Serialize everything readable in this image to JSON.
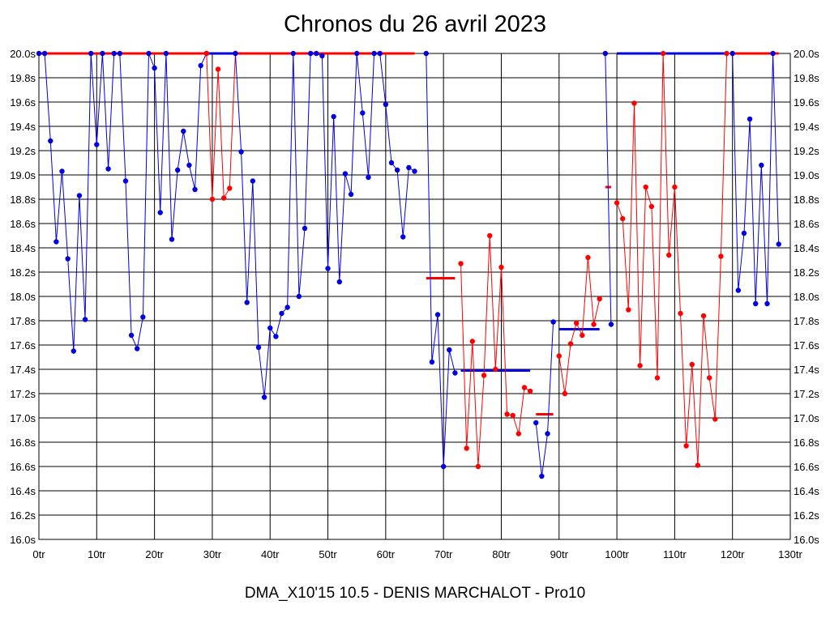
{
  "chart_data": {
    "type": "line",
    "title": "Chronos du 26 avril 2023",
    "subtitle": "DMA_X10'15 10.5 - DENIS MARCHALOT - Pro10",
    "x_unit": "tr",
    "y_unit": "s",
    "xlim": [
      0,
      130
    ],
    "ylim": [
      16.0,
      20.0
    ],
    "x_ticks": [
      "0tr",
      "10tr",
      "20tr",
      "30tr",
      "40tr",
      "50tr",
      "60tr",
      "70tr",
      "80tr",
      "90tr",
      "100tr",
      "110tr",
      "120tr",
      "130tr"
    ],
    "y_ticks": [
      "16.0s",
      "16.2s",
      "16.4s",
      "16.6s",
      "16.8s",
      "17.0s",
      "17.2s",
      "17.4s",
      "17.6s",
      "17.8s",
      "18.0s",
      "18.2s",
      "18.4s",
      "18.6s",
      "18.8s",
      "19.0s",
      "19.2s",
      "19.4s",
      "19.6s",
      "19.8s",
      "20.0s"
    ],
    "grid": true,
    "colors": {
      "blue": "#0000e0",
      "red": "#ff0000",
      "grid": "#000000"
    },
    "series": [
      {
        "color": "#0000e0",
        "points": [
          [
            0,
            20.0
          ],
          [
            1,
            20.0
          ],
          [
            2,
            19.28
          ],
          [
            3,
            18.45
          ],
          [
            4,
            19.03
          ],
          [
            5,
            18.31
          ],
          [
            6,
            17.55
          ],
          [
            7,
            18.83
          ],
          [
            8,
            17.81
          ],
          [
            9,
            20.0
          ],
          [
            10,
            19.25
          ],
          [
            11,
            20.0
          ],
          [
            12,
            19.05
          ],
          [
            13,
            20.0
          ],
          [
            14,
            20.0
          ],
          [
            15,
            18.95
          ],
          [
            16,
            17.68
          ],
          [
            17,
            17.57
          ],
          [
            18,
            17.83
          ],
          [
            19,
            20.0
          ],
          [
            20,
            19.88
          ],
          [
            21,
            18.69
          ],
          [
            22,
            20.0
          ],
          [
            23,
            18.47
          ],
          [
            24,
            19.04
          ],
          [
            25,
            19.36
          ],
          [
            26,
            19.08
          ],
          [
            27,
            18.88
          ],
          [
            28,
            19.9
          ],
          [
            29,
            20.0
          ]
        ]
      },
      {
        "color": "#ff0000",
        "points": [
          [
            29,
            20.0
          ],
          [
            30,
            18.8
          ],
          [
            31,
            19.87
          ],
          [
            32,
            18.81
          ],
          [
            33,
            18.89
          ],
          [
            34,
            20.0
          ]
        ]
      },
      {
        "color": "#0000e0",
        "points": [
          [
            34,
            20.0
          ],
          [
            35,
            19.19
          ],
          [
            36,
            17.95
          ],
          [
            37,
            18.95
          ],
          [
            38,
            17.58
          ],
          [
            39,
            17.17
          ],
          [
            40,
            17.74
          ],
          [
            41,
            17.67
          ],
          [
            42,
            17.86
          ],
          [
            43,
            17.91
          ],
          [
            44,
            20.0
          ],
          [
            45,
            18.0
          ],
          [
            46,
            18.56
          ],
          [
            47,
            20.0
          ],
          [
            48,
            20.0
          ],
          [
            49,
            19.98
          ],
          [
            50,
            18.23
          ],
          [
            51,
            19.48
          ],
          [
            52,
            18.12
          ],
          [
            53,
            19.01
          ],
          [
            54,
            18.84
          ],
          [
            55,
            20.0
          ],
          [
            56,
            19.51
          ],
          [
            57,
            18.98
          ],
          [
            58,
            20.0
          ],
          [
            59,
            20.0
          ],
          [
            60,
            19.58
          ],
          [
            61,
            19.1
          ],
          [
            62,
            19.04
          ],
          [
            63,
            18.49
          ],
          [
            64,
            19.06
          ],
          [
            65,
            19.03
          ]
        ]
      },
      {
        "color": "#0000e0",
        "points": [
          [
            67,
            20.0
          ],
          [
            68,
            17.46
          ],
          [
            69,
            17.85
          ],
          [
            70,
            16.6
          ],
          [
            71,
            17.56
          ],
          [
            72,
            17.37
          ]
        ]
      },
      {
        "color": "#ff0000",
        "points": [
          [
            73,
            18.27
          ],
          [
            74,
            16.75
          ],
          [
            75,
            17.63
          ],
          [
            76,
            16.6
          ],
          [
            77,
            17.35
          ],
          [
            78,
            18.5
          ],
          [
            79,
            17.4
          ],
          [
            80,
            18.24
          ],
          [
            81,
            17.03
          ],
          [
            82,
            17.02
          ],
          [
            83,
            16.87
          ],
          [
            84,
            17.25
          ],
          [
            85,
            17.22
          ]
        ]
      },
      {
        "color": "#0000e0",
        "points": [
          [
            86,
            16.96
          ],
          [
            87,
            16.52
          ],
          [
            88,
            16.87
          ],
          [
            89,
            17.79
          ]
        ]
      },
      {
        "color": "#ff0000",
        "points": [
          [
            90,
            17.51
          ],
          [
            91,
            17.2
          ],
          [
            92,
            17.61
          ],
          [
            93,
            17.78
          ],
          [
            94,
            17.68
          ],
          [
            95,
            18.32
          ],
          [
            96,
            17.77
          ],
          [
            97,
            17.98
          ]
        ]
      },
      {
        "color": "#0000e0",
        "points": [
          [
            98,
            20.0
          ],
          [
            99,
            17.77
          ]
        ]
      },
      {
        "color": "#ff0000",
        "points": [
          [
            100,
            18.77
          ],
          [
            101,
            18.64
          ],
          [
            102,
            17.89
          ],
          [
            103,
            19.59
          ],
          [
            104,
            17.43
          ],
          [
            105,
            18.9
          ],
          [
            106,
            18.74
          ],
          [
            107,
            17.33
          ],
          [
            108,
            20.0
          ],
          [
            109,
            18.34
          ],
          [
            110,
            18.9
          ],
          [
            111,
            17.86
          ],
          [
            112,
            16.77
          ],
          [
            113,
            17.44
          ],
          [
            114,
            16.61
          ],
          [
            115,
            17.84
          ],
          [
            116,
            17.33
          ],
          [
            117,
            16.99
          ],
          [
            118,
            18.33
          ],
          [
            119,
            20.0
          ]
        ]
      },
      {
        "color": "#0000e0",
        "points": [
          [
            120,
            20.0
          ],
          [
            121,
            18.05
          ],
          [
            122,
            18.52
          ],
          [
            123,
            19.46
          ],
          [
            124,
            17.94
          ],
          [
            125,
            19.08
          ],
          [
            126,
            17.94
          ],
          [
            127,
            20.0
          ],
          [
            128,
            18.43
          ]
        ]
      }
    ],
    "segments": [
      {
        "color": "#ff0000",
        "x": [
          0,
          29
        ],
        "y": 20.0
      },
      {
        "color": "#0000e0",
        "x": [
          29,
          34
        ],
        "y": 20.0
      },
      {
        "color": "#ff0000",
        "x": [
          34,
          65
        ],
        "y": 20.0
      },
      {
        "color": "#ff0000",
        "x": [
          67,
          72
        ],
        "y": 18.15
      },
      {
        "color": "#0000e0",
        "x": [
          73,
          85
        ],
        "y": 17.39
      },
      {
        "color": "#ff0000",
        "x": [
          86,
          89
        ],
        "y": 17.03
      },
      {
        "color": "#0000e0",
        "x": [
          90,
          97
        ],
        "y": 17.73
      },
      {
        "color": "#ff0000",
        "x": [
          98,
          99
        ],
        "y": 18.9
      },
      {
        "color": "#0000e0",
        "x": [
          100,
          119
        ],
        "y": 20.0
      },
      {
        "color": "#ff0000",
        "x": [
          120,
          128
        ],
        "y": 20.0
      }
    ]
  }
}
